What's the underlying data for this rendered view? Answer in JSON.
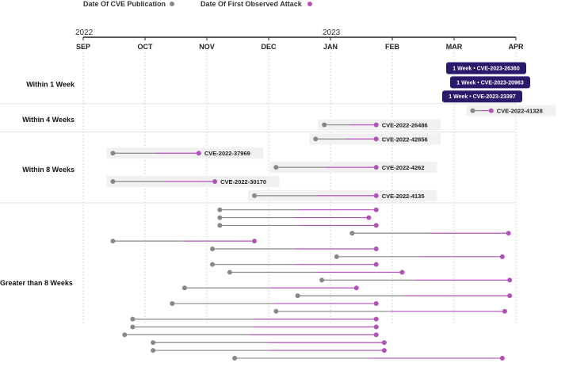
{
  "colors": {
    "publication": "#888888",
    "attack": "#b152b9",
    "badge": "#2b1a6b",
    "label_bg": "#f1f1f1",
    "grid": "#cfcfcf"
  },
  "chart_data": {
    "type": "dumbbell",
    "legend": [
      {
        "name": "Date Of CVE Publication",
        "color": "#888888"
      },
      {
        "name": "Date Of First Observed Attack",
        "color": "#b152b9"
      }
    ],
    "years": [
      {
        "label": "2022",
        "month_index": 0
      },
      {
        "label": "2023",
        "month_index": 4
      }
    ],
    "months": [
      "SEP",
      "OCT",
      "NOV",
      "DEC",
      "JAN",
      "FEB",
      "MAR",
      "APR"
    ],
    "x_domain": [
      0,
      7
    ],
    "groups": [
      {
        "label": "Within 1 Week",
        "rows": 3
      },
      {
        "label": "Within 4 Weeks",
        "rows": 2
      },
      {
        "label": "Within 8 Weeks",
        "rows": 5
      },
      {
        "label": "Greater than 8 Weeks",
        "rows": 20
      }
    ],
    "series": [
      {
        "group": 0,
        "pub": 6.95,
        "attack": 6.95,
        "label": "1 Week • CVE-2023-26360",
        "style": "badge"
      },
      {
        "group": 0,
        "pub": 6.95,
        "attack": 6.95,
        "label": "1 Week • CVE-2023-20963",
        "style": "badge"
      },
      {
        "group": 0,
        "pub": 6.95,
        "attack": 6.95,
        "label": "1 Week • CVE-2023-23397",
        "style": "badge"
      },
      {
        "group": 1,
        "pub": 6.3,
        "attack": 6.6,
        "label": "CVE-2022-41328",
        "style": "label"
      },
      {
        "group": 1,
        "pub": 3.9,
        "attack": 4.74,
        "label": "CVE-2022-26486",
        "style": "label"
      },
      {
        "group": 2,
        "pub": 3.76,
        "attack": 4.74,
        "label": "CVE-2022-42856",
        "style": "label"
      },
      {
        "group": 2,
        "pub": 0.48,
        "attack": 1.87,
        "label": "CVE-2022-37969",
        "style": "label"
      },
      {
        "group": 2,
        "pub": 3.12,
        "attack": 4.74,
        "label": "CVE-2022-4262",
        "style": "label"
      },
      {
        "group": 2,
        "pub": 0.48,
        "attack": 2.13,
        "label": "CVE-2022-30170",
        "style": "label"
      },
      {
        "group": 2,
        "pub": 2.77,
        "attack": 4.74,
        "label": "CVE-2022-4135",
        "style": "label"
      },
      {
        "group": 3,
        "pub": 2.21,
        "attack": 4.74
      },
      {
        "group": 3,
        "pub": 2.21,
        "attack": 4.62
      },
      {
        "group": 3,
        "pub": 2.21,
        "attack": 4.74
      },
      {
        "group": 3,
        "pub": 4.35,
        "attack": 6.88
      },
      {
        "group": 3,
        "pub": 0.48,
        "attack": 2.77
      },
      {
        "group": 3,
        "pub": 2.09,
        "attack": 4.74
      },
      {
        "group": 3,
        "pub": 4.1,
        "attack": 6.78
      },
      {
        "group": 3,
        "pub": 2.09,
        "attack": 4.74
      },
      {
        "group": 3,
        "pub": 2.37,
        "attack": 5.16
      },
      {
        "group": 3,
        "pub": 3.86,
        "attack": 6.9
      },
      {
        "group": 3,
        "pub": 1.64,
        "attack": 4.42
      },
      {
        "group": 3,
        "pub": 3.47,
        "attack": 6.9
      },
      {
        "group": 3,
        "pub": 1.44,
        "attack": 4.74
      },
      {
        "group": 3,
        "pub": 3.12,
        "attack": 6.82
      },
      {
        "group": 3,
        "pub": 0.8,
        "attack": 4.74
      },
      {
        "group": 3,
        "pub": 0.8,
        "attack": 4.74
      },
      {
        "group": 3,
        "pub": 0.67,
        "attack": 4.74
      },
      {
        "group": 3,
        "pub": 1.13,
        "attack": 4.87
      },
      {
        "group": 3,
        "pub": 1.13,
        "attack": 4.87
      },
      {
        "group": 3,
        "pub": 2.45,
        "attack": 6.78
      }
    ]
  }
}
